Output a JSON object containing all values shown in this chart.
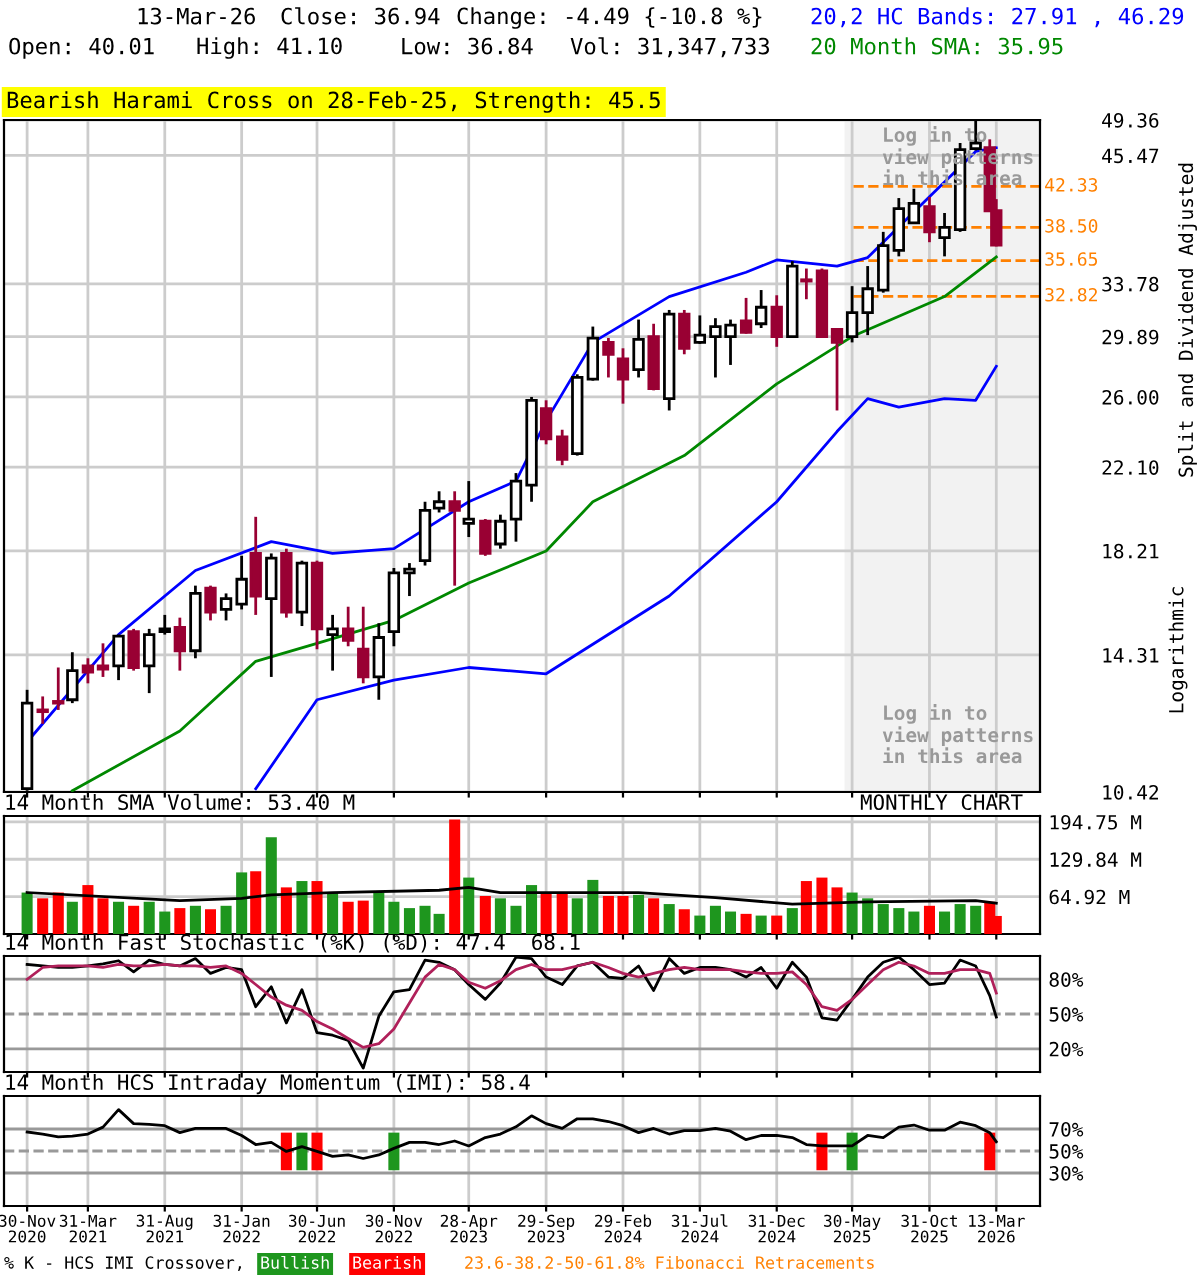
{
  "chart_data": [
    {
      "type": "candlestick",
      "x": [
        "2020-11-30",
        "2020-12-31",
        "2021-01-31",
        "2021-02-28",
        "2021-03-31",
        "2021-04-30",
        "2021-05-31",
        "2021-06-30",
        "2021-07-31",
        "2021-08-31",
        "2021-09-30",
        "2021-10-31",
        "2021-11-30",
        "2021-12-31",
        "2022-01-31",
        "2022-02-28",
        "2022-03-31",
        "2022-04-30",
        "2022-05-31",
        "2022-06-30",
        "2022-07-31",
        "2022-08-31",
        "2022-09-30",
        "2022-10-31",
        "2022-11-30",
        "2022-12-31",
        "2023-01-31",
        "2023-02-28",
        "2023-03-31",
        "2023-04-28",
        "2023-05-31",
        "2023-06-30",
        "2023-07-31",
        "2023-08-31",
        "2023-09-29",
        "2023-10-31",
        "2023-11-30",
        "2023-12-31",
        "2024-01-31",
        "2024-02-29",
        "2024-03-31",
        "2024-04-30",
        "2024-05-31",
        "2024-06-30",
        "2024-07-31",
        "2024-08-31",
        "2024-09-30",
        "2024-10-31",
        "2024-11-30",
        "2024-12-31",
        "2025-01-31",
        "2025-02-28",
        "2025-03-31",
        "2025-04-30",
        "2025-05-30",
        "2025-06-30",
        "2025-07-31",
        "2025-08-31",
        "2025-09-30",
        "2025-10-31",
        "2025-11-30",
        "2025-12-31",
        "2026-01-31",
        "2026-02-28",
        "2026-03-13"
      ],
      "ohlc": [
        [
          10.5,
          13.2,
          10.45,
          12.8
        ],
        [
          12.6,
          13.0,
          12.2,
          12.55
        ],
        [
          12.85,
          13.9,
          12.6,
          12.8
        ],
        [
          12.9,
          14.4,
          12.8,
          13.8
        ],
        [
          13.95,
          14.2,
          13.4,
          13.75
        ],
        [
          13.95,
          14.7,
          13.6,
          13.85
        ],
        [
          13.95,
          15.0,
          13.5,
          14.95
        ],
        [
          15.1,
          15.2,
          13.8,
          13.9
        ],
        [
          13.95,
          15.2,
          13.1,
          15.0
        ],
        [
          15.1,
          15.7,
          15.0,
          15.2
        ],
        [
          15.25,
          15.6,
          13.8,
          14.45
        ],
        [
          14.45,
          16.8,
          14.2,
          16.5
        ],
        [
          16.7,
          16.8,
          15.5,
          15.8
        ],
        [
          15.9,
          16.5,
          15.5,
          16.3
        ],
        [
          16.1,
          18.0,
          15.9,
          17.05
        ],
        [
          18.1,
          19.7,
          15.7,
          16.4
        ],
        [
          16.3,
          18.1,
          13.6,
          17.9
        ],
        [
          18.1,
          18.3,
          15.6,
          15.8
        ],
        [
          15.8,
          17.8,
          15.3,
          17.7
        ],
        [
          17.7,
          17.8,
          14.5,
          15.2
        ],
        [
          15.0,
          15.7,
          13.8,
          15.2
        ],
        [
          15.2,
          16.0,
          14.6,
          14.8
        ],
        [
          14.5,
          16.0,
          13.4,
          13.6
        ],
        [
          13.6,
          15.4,
          12.9,
          14.9
        ],
        [
          15.1,
          17.5,
          14.6,
          17.3
        ],
        [
          17.3,
          17.7,
          16.4,
          17.45
        ],
        [
          17.8,
          20.4,
          17.6,
          20.0
        ],
        [
          20.1,
          20.9,
          19.9,
          20.4
        ],
        [
          20.4,
          20.9,
          16.8,
          20.0
        ],
        [
          19.4,
          21.4,
          18.8,
          19.6
        ],
        [
          19.5,
          19.6,
          18.0,
          18.1
        ],
        [
          18.5,
          19.8,
          18.3,
          19.5
        ],
        [
          19.6,
          21.8,
          18.6,
          21.4
        ],
        [
          21.2,
          26.0,
          20.4,
          25.8
        ],
        [
          25.3,
          25.8,
          23.3,
          23.6
        ],
        [
          23.7,
          24.1,
          22.2,
          22.5
        ],
        [
          22.8,
          27.4,
          22.7,
          27.2
        ],
        [
          27.1,
          30.6,
          27.0,
          29.8
        ],
        [
          29.5,
          29.8,
          27.2,
          28.7
        ],
        [
          28.4,
          29.1,
          25.6,
          27.1
        ],
        [
          27.7,
          31.1,
          27.2,
          29.7
        ],
        [
          29.9,
          30.8,
          26.4,
          26.5
        ],
        [
          25.9,
          31.8,
          25.2,
          31.5
        ],
        [
          31.5,
          31.8,
          28.7,
          29.1
        ],
        [
          29.5,
          31.4,
          29.4,
          30.0
        ],
        [
          29.9,
          31.2,
          27.2,
          30.6
        ],
        [
          29.9,
          31.1,
          28.0,
          30.7
        ],
        [
          31.0,
          32.7,
          30.1,
          30.2
        ],
        [
          30.8,
          33.3,
          30.5,
          32.0
        ],
        [
          32.0,
          32.9,
          29.2,
          29.9
        ],
        [
          29.9,
          35.6,
          29.8,
          35.2
        ],
        [
          34.1,
          35.0,
          32.6,
          34.0
        ],
        [
          34.8,
          35.0,
          29.8,
          29.9
        ],
        [
          30.4,
          30.4,
          25.2,
          29.5
        ],
        [
          29.9,
          33.6,
          29.5,
          31.6
        ],
        [
          31.6,
          35.2,
          30.0,
          33.4
        ],
        [
          33.3,
          38.1,
          33.1,
          36.9
        ],
        [
          36.5,
          41.2,
          36.0,
          40.2
        ],
        [
          38.9,
          42.1,
          38.9,
          40.7
        ],
        [
          40.4,
          41.3,
          37.2,
          38.1
        ],
        [
          37.6,
          39.8,
          36.0,
          38.5
        ],
        [
          38.3,
          46.8,
          38.1,
          46.1
        ],
        [
          46.2,
          49.3,
          46.0,
          46.8
        ],
        [
          46.3,
          47.2,
          39.9,
          40.0
        ],
        [
          40.01,
          41.1,
          36.84,
          36.94
        ]
      ],
      "colors": [
        "#ffffff",
        "#990033",
        "#990033",
        "#ffffff",
        "#990033",
        "#990033",
        "#ffffff",
        "#990033",
        "#ffffff",
        "#ffffff",
        "#990033",
        "#ffffff",
        "#990033",
        "#ffffff",
        "#ffffff",
        "#990033",
        "#ffffff",
        "#990033",
        "#ffffff",
        "#990033",
        "#ffffff",
        "#990033",
        "#990033",
        "#ffffff",
        "#ffffff",
        "#ffffff",
        "#ffffff",
        "#ffffff",
        "#990033",
        "#ffffff",
        "#990033",
        "#ffffff",
        "#ffffff",
        "#ffffff",
        "#990033",
        "#990033",
        "#ffffff",
        "#ffffff",
        "#990033",
        "#990033",
        "#ffffff",
        "#990033",
        "#ffffff",
        "#990033",
        "#ffffff",
        "#ffffff",
        "#ffffff",
        "#990033",
        "#ffffff",
        "#990033",
        "#ffffff",
        "#990033",
        "#990033",
        "#990033",
        "#ffffff",
        "#ffffff",
        "#ffffff",
        "#ffffff",
        "#ffffff",
        "#990033",
        "#ffffff",
        "#ffffff",
        "#ffffff",
        "#990033",
        "#990033"
      ],
      "series": [
        {
          "type": "line",
          "name": "20,2 HC Bands: 27.91 , 46.29",
          "color": "#0000ff",
          "x": [
            "2020-11-30",
            "2021-05-31",
            "2021-10-31",
            "2022-03-31",
            "2022-07-31",
            "2022-11-30",
            "2023-04-28",
            "2023-07-31",
            "2023-09-29",
            "2023-12-31",
            "2024-05-31",
            "2024-10-31",
            "2024-12-31",
            "2025-04-30",
            "2025-06-30",
            "2025-09-30",
            "2026-01-31",
            "2026-03-13"
          ],
          "values": [
            11.7,
            15.0,
            17.4,
            18.6,
            18.1,
            18.3,
            20.4,
            21.4,
            24.6,
            29.5,
            32.8,
            34.7,
            35.7,
            35.2,
            35.9,
            39.9,
            45.9,
            46.29
          ]
        },
        {
          "type": "line",
          "color": "#0000ff",
          "x": [
            "2022-02-28",
            "2022-06-30",
            "2022-11-30",
            "2023-04-28",
            "2023-09-29",
            "2024-05-31",
            "2024-12-31",
            "2025-04-30",
            "2025-06-30",
            "2025-08-31",
            "2025-11-30",
            "2026-01-31",
            "2026-03-13"
          ],
          "values": [
            10.5,
            12.9,
            13.5,
            13.9,
            13.7,
            16.4,
            20.4,
            24.0,
            25.9,
            25.4,
            25.9,
            25.8,
            27.91
          ]
        },
        {
          "type": "line",
          "name": "20 Month SMA: 35.95",
          "color": "#008800",
          "x": [
            "2021-02-28",
            "2021-09-30",
            "2022-02-28",
            "2022-06-30",
            "2022-11-30",
            "2023-04-28",
            "2023-09-29",
            "2023-12-31",
            "2024-06-30",
            "2024-12-31",
            "2025-05-30",
            "2025-11-30",
            "2026-03-13"
          ],
          "values": [
            10.45,
            12.0,
            14.1,
            14.7,
            15.5,
            16.9,
            18.2,
            20.4,
            22.7,
            26.8,
            29.9,
            32.8,
            35.95
          ]
        }
      ],
      "log": true,
      "ylim": [
        10.42,
        49.36
      ],
      "yticks": [
        49.36,
        45.47,
        33.78,
        29.89,
        {
          "value": 26.0,
          "label": "26.00"
        },
        {
          "value": 22.1,
          "label": "22.10"
        },
        18.21,
        14.31,
        10.42
      ],
      "xlim": [
        "2020-10-15",
        "2026-06-08"
      ],
      "xticks": [
        {
          "value": "2020-11-30",
          "label": null
        },
        {
          "value": "2021-03-31",
          "label": null
        },
        {
          "value": "2021-08-31",
          "label": null
        },
        {
          "value": "2022-01-31",
          "label": null
        },
        {
          "value": "2022-06-30",
          "label": null
        },
        {
          "value": "2022-11-30",
          "label": null
        },
        {
          "value": "2023-04-28",
          "label": null
        },
        {
          "value": "2023-09-29",
          "label": null
        },
        {
          "value": "2024-02-29",
          "label": null
        },
        {
          "value": "2024-07-31",
          "label": null
        },
        {
          "value": "2024-12-31",
          "label": null
        },
        {
          "value": "2025-05-30",
          "label": null
        },
        {
          "value": "2025-10-31",
          "label": null
        },
        {
          "value": "2026-03-13",
          "label": null
        }
      ],
      "tick_labels": "y",
      "grid": true,
      "ylabel": "Split and Dividend Adjusted",
      "ref_lines": [
        {
          "axis": "y",
          "value": 42.33,
          "label": "42.33",
          "color": "#ff8000",
          "line_style": "dashed"
        },
        {
          "axis": "y",
          "value": 38.5,
          "label": "38.50",
          "color": "#ff8000",
          "line_style": "dashed"
        },
        {
          "axis": "y",
          "value": 35.65,
          "label": "35.65",
          "color": "#ff8000",
          "line_style": "dashed"
        },
        {
          "axis": "y",
          "value": 32.82,
          "label": "32.82",
          "color": "#ff8000",
          "line_style": "dashed"
        }
      ],
      "bands": [
        {
          "axis": "x",
          "from": "2025-05-15",
          "to": "2026-06-08",
          "color": "#f2f2f2"
        }
      ],
      "annotations": [
        "13-Mar-26",
        "Close: 36.94",
        "Change: -4.49 {-10.8 %}",
        "Open: 40.01",
        "High: 41.10",
        "Low: 36.84",
        "Vol: 31,347,733",
        "Bearish Harami Cross on 28-Feb-25, Strength: 45.5",
        "Log in to\nview patterns\nin this area",
        "Log in to\nview patterns\nin this area",
        "Logarithmic"
      ]
    },
    {
      "type": "bar",
      "x": [
        "2020-11-30",
        "2020-12-31",
        "2021-01-31",
        "2021-02-28",
        "2021-03-31",
        "2021-04-30",
        "2021-05-31",
        "2021-06-30",
        "2021-07-31",
        "2021-08-31",
        "2021-09-30",
        "2021-10-31",
        "2021-11-30",
        "2021-12-31",
        "2022-01-31",
        "2022-02-28",
        "2022-03-31",
        "2022-04-30",
        "2022-05-31",
        "2022-06-30",
        "2022-07-31",
        "2022-08-31",
        "2022-09-30",
        "2022-10-31",
        "2022-11-30",
        "2022-12-31",
        "2023-01-31",
        "2023-02-28",
        "2023-03-31",
        "2023-04-28",
        "2023-05-31",
        "2023-06-30",
        "2023-07-31",
        "2023-08-31",
        "2023-09-29",
        "2023-10-31",
        "2023-11-30",
        "2023-12-31",
        "2024-01-31",
        "2024-02-29",
        "2024-03-31",
        "2024-04-30",
        "2024-05-31",
        "2024-06-30",
        "2024-07-31",
        "2024-08-31",
        "2024-09-30",
        "2024-10-31",
        "2024-11-30",
        "2024-12-31",
        "2025-01-31",
        "2025-02-28",
        "2025-03-31",
        "2025-04-30",
        "2025-05-30",
        "2025-06-30",
        "2025-07-31",
        "2025-08-31",
        "2025-09-30",
        "2025-10-31",
        "2025-11-30",
        "2025-12-31",
        "2026-01-31",
        "2026-02-28",
        "2026-03-13"
      ],
      "values": [
        72,
        62,
        72,
        56,
        85,
        62,
        56,
        49,
        56,
        39,
        45,
        49,
        43,
        49,
        107,
        109,
        168,
        81,
        92,
        92,
        72,
        56,
        58,
        72,
        56,
        45,
        49,
        35,
        199,
        98,
        66,
        62,
        49,
        85,
        70,
        70,
        62,
        94,
        66,
        66,
        68,
        62,
        52,
        43,
        32,
        49,
        39,
        35,
        32,
        32,
        45,
        92,
        98,
        81,
        72,
        62,
        52,
        45,
        39,
        49,
        39,
        52,
        49,
        56,
        31.35
      ],
      "colors": [
        "#1e961e",
        "#ff0000",
        "#ff0000",
        "#1e961e",
        "#ff0000",
        "#ff0000",
        "#1e961e",
        "#ff0000",
        "#1e961e",
        "#1e961e",
        "#ff0000",
        "#1e961e",
        "#ff0000",
        "#1e961e",
        "#1e961e",
        "#ff0000",
        "#1e961e",
        "#ff0000",
        "#1e961e",
        "#ff0000",
        "#1e961e",
        "#ff0000",
        "#ff0000",
        "#1e961e",
        "#1e961e",
        "#1e961e",
        "#1e961e",
        "#1e961e",
        "#ff0000",
        "#1e961e",
        "#ff0000",
        "#1e961e",
        "#1e961e",
        "#1e961e",
        "#ff0000",
        "#ff0000",
        "#1e961e",
        "#1e961e",
        "#ff0000",
        "#ff0000",
        "#1e961e",
        "#ff0000",
        "#1e961e",
        "#ff0000",
        "#1e961e",
        "#1e961e",
        "#1e961e",
        "#ff0000",
        "#1e961e",
        "#ff0000",
        "#1e961e",
        "#ff0000",
        "#ff0000",
        "#ff0000",
        "#1e961e",
        "#1e961e",
        "#1e961e",
        "#1e961e",
        "#1e961e",
        "#ff0000",
        "#1e961e",
        "#1e961e",
        "#1e961e",
        "#ff0000",
        "#ff0000"
      ],
      "series": [
        {
          "type": "line",
          "name": "14 Month SMA Volume: 53.40 M",
          "color": "#000000",
          "x": [
            "2020-11-30",
            "2021-09-30",
            "2022-01-31",
            "2022-03-31",
            "2022-07-31",
            "2023-02-28",
            "2023-04-28",
            "2023-06-30",
            "2024-03-31",
            "2024-08-31",
            "2025-01-31",
            "2025-06-30",
            "2026-01-31",
            "2026-03-13"
          ],
          "values": [
            72,
            58,
            62,
            68,
            72,
            76,
            81,
            72,
            72,
            63,
            52,
            56,
            58,
            53.4
          ]
        }
      ],
      "ylim": [
        0,
        205
      ],
      "yticks": [
        {
          "value": 194.75,
          "label": "194.75 M"
        },
        {
          "value": 129.84,
          "label": "129.84 M"
        },
        {
          "value": 64.92,
          "label": "64.92 M"
        }
      ],
      "xlim": [
        "2020-10-15",
        "2026-06-08"
      ],
      "xticks": [
        {
          "value": "2020-11-30",
          "label": null
        },
        {
          "value": "2021-03-31",
          "label": null
        },
        {
          "value": "2021-08-31",
          "label": null
        },
        {
          "value": "2022-01-31",
          "label": null
        },
        {
          "value": "2022-06-30",
          "label": null
        },
        {
          "value": "2022-11-30",
          "label": null
        },
        {
          "value": "2023-04-28",
          "label": null
        },
        {
          "value": "2023-09-29",
          "label": null
        },
        {
          "value": "2024-02-29",
          "label": null
        },
        {
          "value": "2024-07-31",
          "label": null
        },
        {
          "value": "2024-12-31",
          "label": null
        },
        {
          "value": "2025-05-30",
          "label": null
        },
        {
          "value": "2025-10-31",
          "label": null
        },
        {
          "value": "2026-03-13",
          "label": null
        }
      ],
      "tick_labels": "y",
      "grid": true,
      "annotations": [
        "MONTHLY CHART"
      ]
    },
    {
      "type": "line",
      "title": "14 Month Fast Stochastic (%K) (%D): 47.4  68.1",
      "x": [
        "2020-11-30",
        "2020-12-31",
        "2021-01-31",
        "2021-02-28",
        "2021-03-31",
        "2021-04-30",
        "2021-05-31",
        "2021-06-30",
        "2021-07-31",
        "2021-08-31",
        "2021-09-30",
        "2021-10-31",
        "2021-11-30",
        "2021-12-31",
        "2022-01-31",
        "2022-02-28",
        "2022-03-31",
        "2022-04-30",
        "2022-05-31",
        "2022-06-30",
        "2022-07-31",
        "2022-08-31",
        "2022-09-30",
        "2022-10-31",
        "2022-11-30",
        "2022-12-31",
        "2023-01-31",
        "2023-02-28",
        "2023-03-31",
        "2023-04-28",
        "2023-05-31",
        "2023-06-30",
        "2023-07-31",
        "2023-08-31",
        "2023-09-29",
        "2023-10-31",
        "2023-11-30",
        "2023-12-31",
        "2024-01-31",
        "2024-02-29",
        "2024-03-31",
        "2024-04-30",
        "2024-05-31",
        "2024-06-30",
        "2024-07-31",
        "2024-08-31",
        "2024-09-30",
        "2024-10-31",
        "2024-11-30",
        "2024-12-31",
        "2025-01-31",
        "2025-02-28",
        "2025-03-31",
        "2025-04-30",
        "2025-05-30",
        "2025-06-30",
        "2025-07-31",
        "2025-08-31",
        "2025-09-30",
        "2025-10-31",
        "2025-11-30",
        "2025-12-31",
        "2026-01-31",
        "2026-02-28",
        "2026-03-13"
      ],
      "series": [
        {
          "color": "#000000",
          "values": [
            92.7,
            91.4,
            90.1,
            90.1,
            91.4,
            93.3,
            95.9,
            86.3,
            96.5,
            92.7,
            91.4,
            97.8,
            85.0,
            90.1,
            88.2,
            56.3,
            73.5,
            42.3,
            71.0,
            33.9,
            31.7,
            27.3,
            3.4,
            48.0,
            69.1,
            71.0,
            96.5,
            94.6,
            88.2,
            75.4,
            62.6,
            76.7,
            99.0,
            97.8,
            81.8,
            75.4,
            91.4,
            94.6,
            81.8,
            80.6,
            91.4,
            70.3,
            97.8,
            85.0,
            90.1,
            90.1,
            88.2,
            81.8,
            90.1,
            72.2,
            94.6,
            81.8,
            46.7,
            44.8,
            62.6,
            81.8,
            94.6,
            99.0,
            88.2,
            75.4,
            76.7,
            96.5,
            91.4,
            65.9,
            47.4
          ]
        },
        {
          "color": "#b0205a",
          "values": [
            79.9,
            90.1,
            91.4,
            91.4,
            91.4,
            90.1,
            92.7,
            91.4,
            91.4,
            92.7,
            91.4,
            91.4,
            90.1,
            91.4,
            85.0,
            75.4,
            64.6,
            57.6,
            53.1,
            43.5,
            37.1,
            28.9,
            21.2,
            24.4,
            37.1,
            59.5,
            81.8,
            92.7,
            88.2,
            77.4,
            72.2,
            78.6,
            88.2,
            92.7,
            88.2,
            88.2,
            91.4,
            94.6,
            90.1,
            85.0,
            81.8,
            85.0,
            88.2,
            90.1,
            88.2,
            88.2,
            88.2,
            86.3,
            85.0,
            85.0,
            86.3,
            75.4,
            56.3,
            53.1,
            62.6,
            75.4,
            88.2,
            94.6,
            91.4,
            85.0,
            85.0,
            88.2,
            88.2,
            85.0,
            68.1
          ]
        }
      ],
      "ylim": [
        0,
        100
      ],
      "yticks": [
        {
          "value": 80,
          "label": "80%"
        },
        {
          "value": 50,
          "label": "50%"
        },
        {
          "value": 20,
          "label": "20%"
        }
      ],
      "ref_lines": [
        {
          "axis": "y",
          "value": 80,
          "color": "#999999",
          "line_style": "solid"
        },
        {
          "axis": "y",
          "value": 50,
          "color": "#999999",
          "line_style": "dashed"
        },
        {
          "axis": "y",
          "value": 20,
          "color": "#999999",
          "line_style": "solid"
        }
      ],
      "xlim": [
        "2020-10-15",
        "2026-06-08"
      ],
      "xticks": [
        {
          "value": "2020-11-30",
          "label": null
        },
        {
          "value": "2021-03-31",
          "label": null
        },
        {
          "value": "2021-08-31",
          "label": null
        },
        {
          "value": "2022-01-31",
          "label": null
        },
        {
          "value": "2022-06-30",
          "label": null
        },
        {
          "value": "2022-11-30",
          "label": null
        },
        {
          "value": "2023-04-28",
          "label": null
        },
        {
          "value": "2023-09-29",
          "label": null
        },
        {
          "value": "2024-02-29",
          "label": null
        },
        {
          "value": "2024-07-31",
          "label": null
        },
        {
          "value": "2024-12-31",
          "label": null
        },
        {
          "value": "2025-05-30",
          "label": null
        },
        {
          "value": "2025-10-31",
          "label": null
        },
        {
          "value": "2026-03-13",
          "label": null
        }
      ],
      "tick_labels": "y",
      "grid": "x"
    },
    {
      "type": "line",
      "title": "14 Month HCS Intraday Momentum (IMI): 58.4",
      "x": [
        "2020-11-30",
        "2020-12-31",
        "2021-01-31",
        "2021-02-28",
        "2021-03-31",
        "2021-04-30",
        "2021-05-31",
        "2021-06-30",
        "2021-07-31",
        "2021-08-31",
        "2021-09-30",
        "2021-10-31",
        "2021-11-30",
        "2021-12-31",
        "2022-01-31",
        "2022-02-28",
        "2022-03-31",
        "2022-04-30",
        "2022-05-31",
        "2022-06-30",
        "2022-07-31",
        "2022-08-31",
        "2022-09-30",
        "2022-10-31",
        "2022-11-30",
        "2022-12-31",
        "2023-01-31",
        "2023-02-28",
        "2023-03-31",
        "2023-04-28",
        "2023-05-31",
        "2023-06-30",
        "2023-07-31",
        "2023-08-31",
        "2023-09-29",
        "2023-10-31",
        "2023-11-30",
        "2023-12-31",
        "2024-01-31",
        "2024-02-29",
        "2024-03-31",
        "2024-04-30",
        "2024-05-31",
        "2024-06-30",
        "2024-07-31",
        "2024-08-31",
        "2024-09-30",
        "2024-10-31",
        "2024-11-30",
        "2024-12-31",
        "2025-01-31",
        "2025-02-28",
        "2025-03-31",
        "2025-04-30",
        "2025-05-30",
        "2025-06-30",
        "2025-07-31",
        "2025-08-31",
        "2025-09-30",
        "2025-10-31",
        "2025-11-30",
        "2025-12-31",
        "2026-01-31",
        "2026-02-28",
        "2026-03-13"
      ],
      "series": [
        {
          "type": "bar",
          "x": [
            "2022-04-30",
            "2022-05-31",
            "2022-06-30",
            "2022-11-30",
            "2025-03-31",
            "2025-05-30",
            "2026-02-28"
          ],
          "base": [
            32.5,
            32.5,
            32.5,
            32.5,
            32.5,
            32.5,
            32.5
          ],
          "values": [
            34.2,
            34.2,
            34.2,
            34.2,
            34.2,
            34.2,
            34.2
          ],
          "colors": [
            "#ff0000",
            "#1e961e",
            "#ff0000",
            "#1e961e",
            "#ff0000",
            "#1e961e",
            "#ff0000"
          ]
        },
        {
          "color": "#000000",
          "values": [
            67.3,
            65.4,
            62.9,
            63.5,
            65.4,
            71.7,
            87.6,
            74.9,
            74.3,
            73.0,
            66.7,
            70.5,
            70.5,
            70.5,
            64.1,
            55.9,
            57.8,
            49.6,
            54.0,
            49.6,
            45.1,
            46.4,
            43.2,
            46.4,
            52.4,
            57.8,
            57.8,
            55.9,
            59.1,
            54.6,
            62.2,
            65.4,
            72.0,
            82.0,
            74.9,
            70.5,
            79.3,
            79.3,
            76.8,
            73.0,
            66.7,
            70.5,
            65.4,
            68.6,
            68.6,
            70.5,
            68.0,
            60.3,
            64.1,
            64.1,
            62.2,
            55.9,
            54.6,
            54.6,
            54.6,
            64.1,
            62.2,
            71.7,
            73.6,
            68.9,
            68.9,
            76.2,
            73.0,
            66.7,
            58.4
          ]
        }
      ],
      "ylim": [
        0,
        100
      ],
      "yticks": [
        {
          "value": 70,
          "label": "70%"
        },
        {
          "value": 50,
          "label": "50%"
        },
        {
          "value": 30,
          "label": "30%"
        }
      ],
      "ref_lines": [
        {
          "axis": "y",
          "value": 70,
          "color": "#999999",
          "line_style": "solid"
        },
        {
          "axis": "y",
          "value": 50,
          "color": "#999999",
          "line_style": "dashed"
        },
        {
          "axis": "y",
          "value": 30,
          "color": "#999999",
          "line_style": "solid"
        }
      ],
      "xlim": [
        "2020-10-15",
        "2026-06-08"
      ],
      "xticks": [
        {
          "value": "2020-11-30",
          "label": "30-Nov\n2020"
        },
        {
          "value": "2021-03-31",
          "label": "31-Mar\n2021"
        },
        {
          "value": "2021-08-31",
          "label": "31-Aug\n2021"
        },
        {
          "value": "2022-01-31",
          "label": "31-Jan\n2022"
        },
        {
          "value": "2022-06-30",
          "label": "30-Jun\n2022"
        },
        {
          "value": "2022-11-30",
          "label": "30-Nov\n2022"
        },
        {
          "value": "2023-04-28",
          "label": "28-Apr\n2023"
        },
        {
          "value": "2023-09-29",
          "label": "29-Sep\n2023"
        },
        {
          "value": "2024-02-29",
          "label": "29-Feb\n2024"
        },
        {
          "value": "2024-07-31",
          "label": "31-Jul\n2024"
        },
        {
          "value": "2024-12-31",
          "label": "31-Dec\n2024"
        },
        {
          "value": "2025-05-30",
          "label": "30-May\n2025"
        },
        {
          "value": "2025-10-31",
          "label": "31-Oct\n2025"
        },
        {
          "value": "2026-03-13",
          "label": "13-Mar\n2026"
        }
      ],
      "grid": "x",
      "annotations": [
        "% K - HCS IMI Crossover,",
        "Bullish",
        "Bearish",
        "23.6-38.2-50-61.8% Fibonacci Retracements"
      ]
    }
  ]
}
